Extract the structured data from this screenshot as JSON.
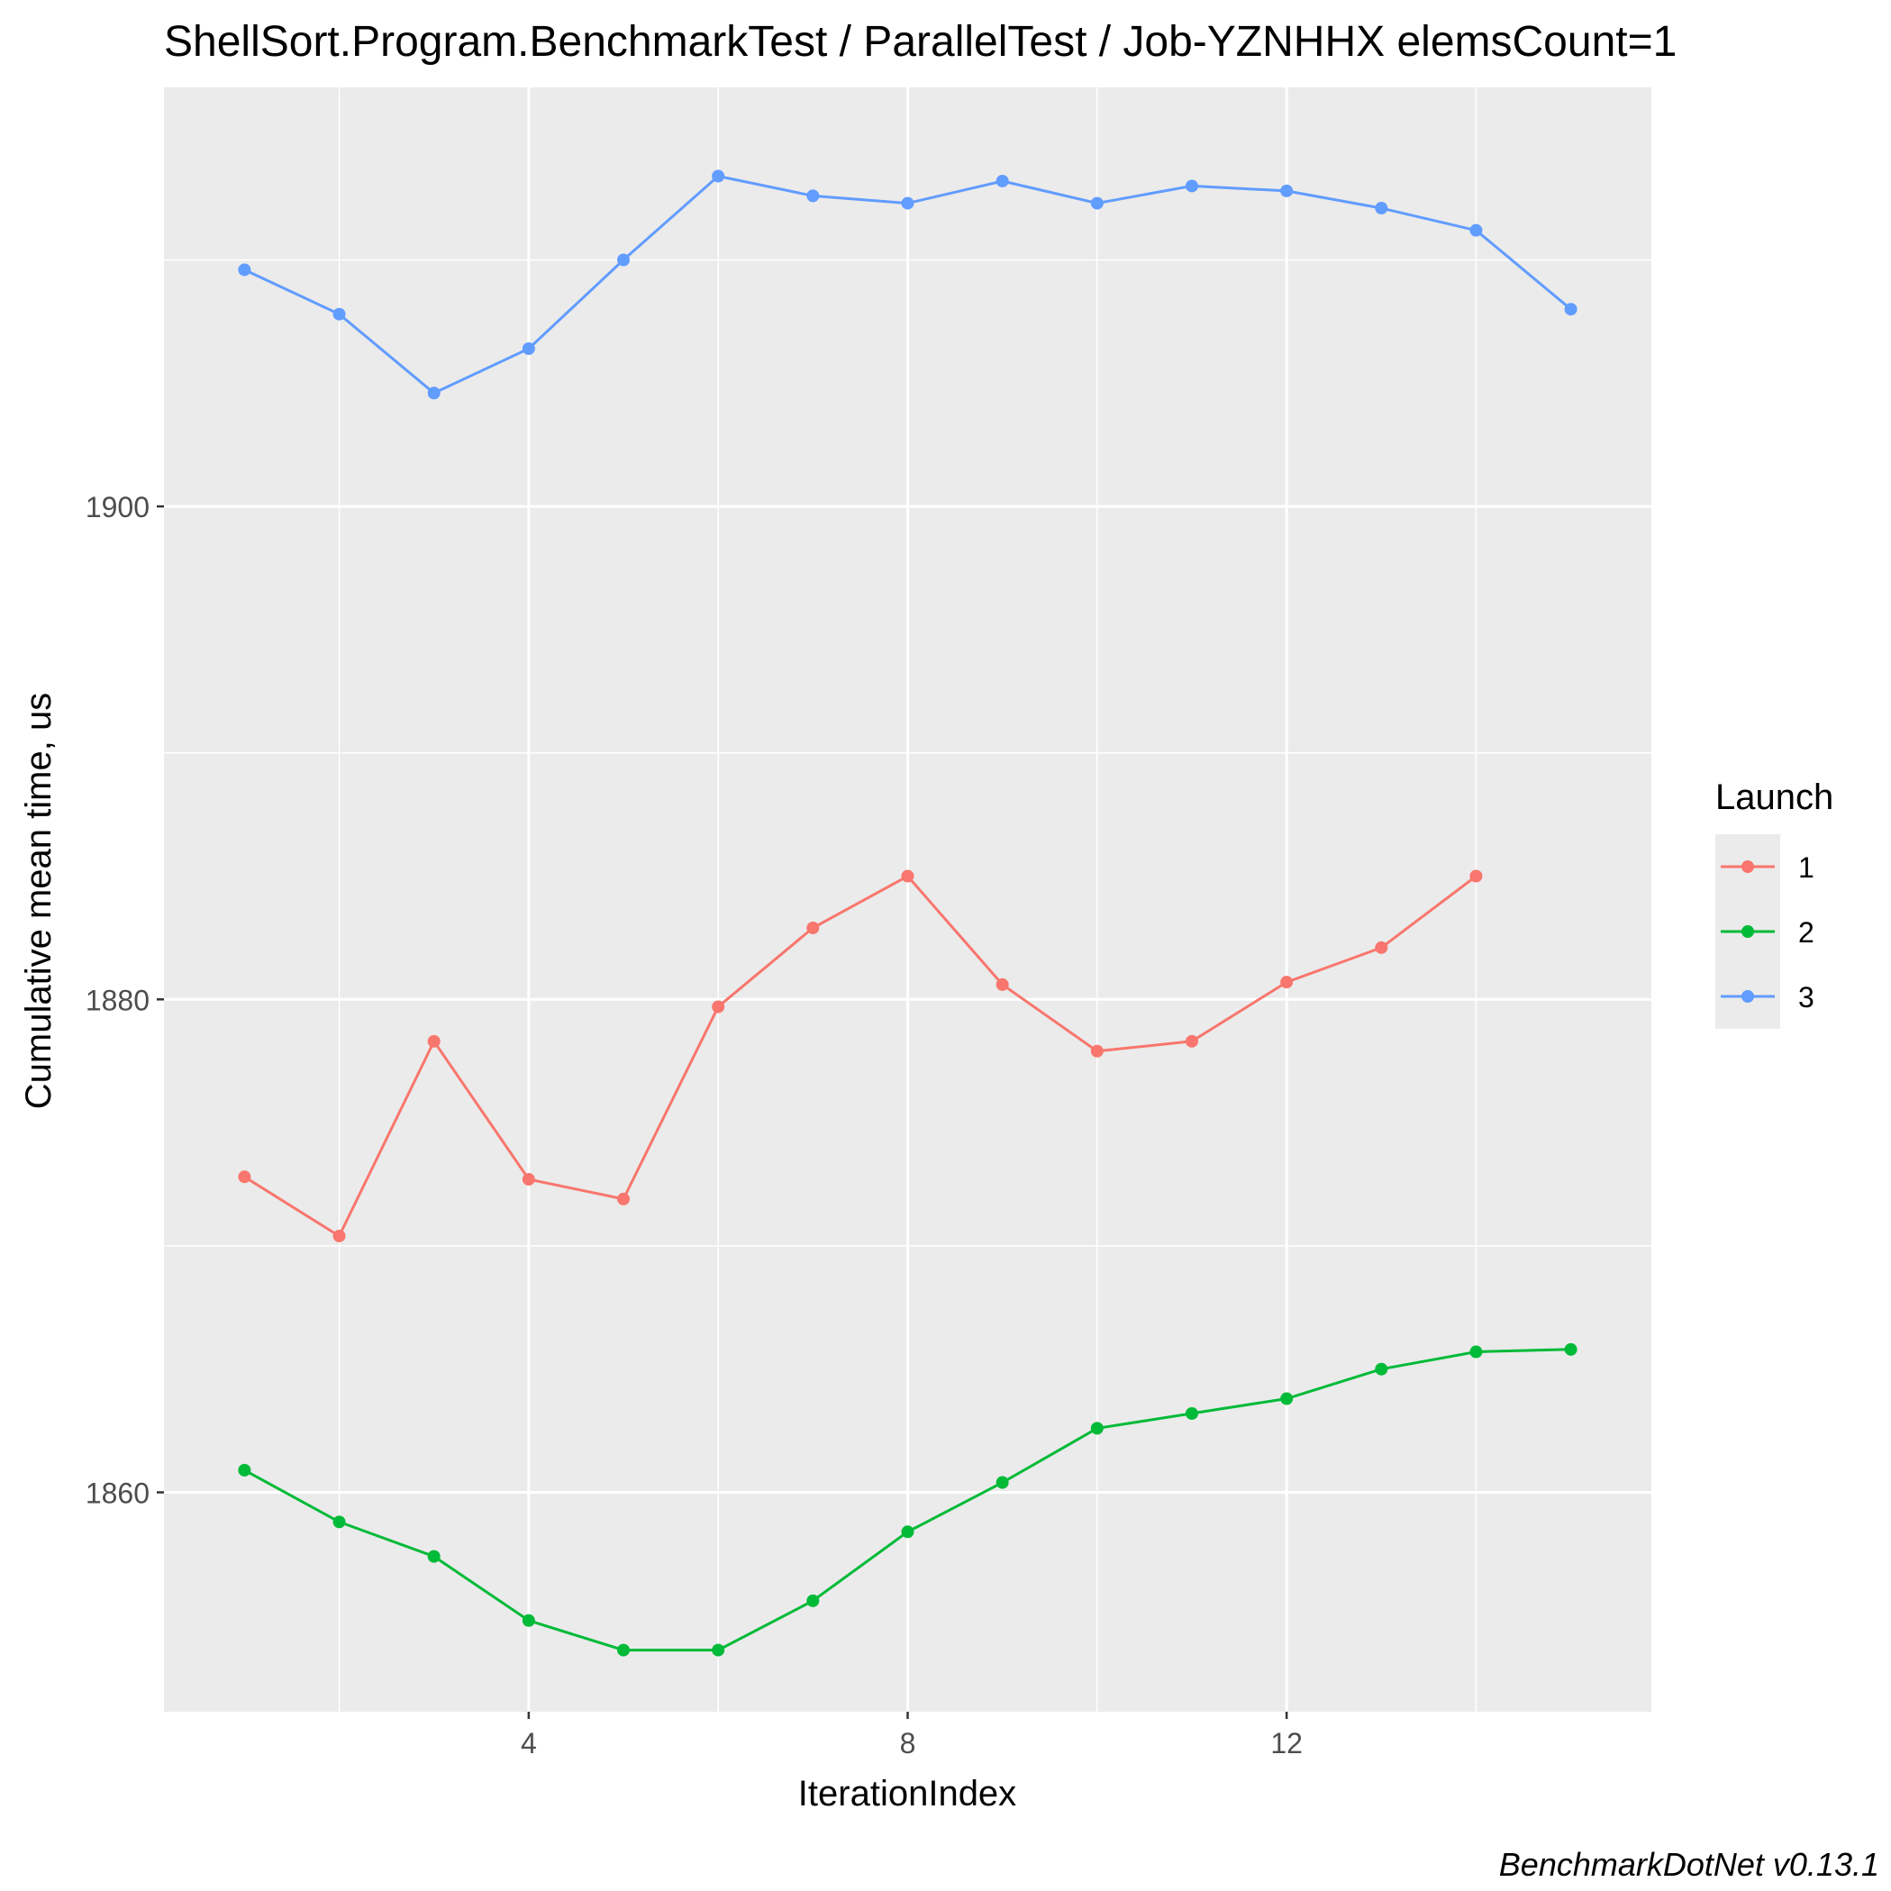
{
  "chart_data": {
    "type": "line",
    "title": "ShellSort.Program.BenchmarkTest / ParallelTest / Job-YZNHHX elemsCount=1",
    "xlabel": "IterationIndex",
    "ylabel": "Cumulative mean time, us",
    "caption": "BenchmarkDotNet v0.13.1",
    "xlim": [
      0.15,
      15.85
    ],
    "ylim": [
      1851.1,
      1917.0
    ],
    "x_ticks": [
      4,
      8,
      12
    ],
    "x_minor_ticks": [
      2,
      6,
      10,
      14
    ],
    "y_ticks": [
      1860,
      1880,
      1900
    ],
    "y_minor_ticks": [
      1870,
      1890,
      1910
    ],
    "grid": true,
    "legend": {
      "title": "Launch",
      "position": "right",
      "entries": [
        "1",
        "2",
        "3"
      ]
    },
    "series": [
      {
        "name": "1",
        "color": "#F8766D",
        "x": [
          1,
          2,
          3,
          4,
          5,
          6,
          7,
          8,
          9,
          10,
          11,
          12,
          13,
          14
        ],
        "values": [
          1872.8,
          1870.4,
          1878.3,
          1872.7,
          1871.9,
          1879.7,
          1882.9,
          1885.0,
          1880.6,
          1877.9,
          1878.3,
          1880.7,
          1882.1,
          1885.0
        ]
      },
      {
        "name": "2",
        "color": "#00BA38",
        "x": [
          1,
          2,
          3,
          4,
          5,
          6,
          7,
          8,
          9,
          10,
          11,
          12,
          13,
          14,
          15
        ],
        "values": [
          1860.9,
          1858.8,
          1857.4,
          1854.8,
          1853.6,
          1853.6,
          1855.6,
          1858.4,
          1860.4,
          1862.6,
          1863.2,
          1863.8,
          1865.0,
          1865.7,
          1865.8
        ]
      },
      {
        "name": "3",
        "color": "#619CFF",
        "x": [
          1,
          2,
          3,
          4,
          5,
          6,
          7,
          8,
          9,
          10,
          11,
          12,
          13,
          14,
          15
        ],
        "values": [
          1909.6,
          1907.8,
          1904.6,
          1906.4,
          1910.0,
          1913.4,
          1912.6,
          1912.3,
          1913.2,
          1912.3,
          1913.0,
          1912.8,
          1912.1,
          1911.2,
          1908.0
        ]
      }
    ]
  }
}
